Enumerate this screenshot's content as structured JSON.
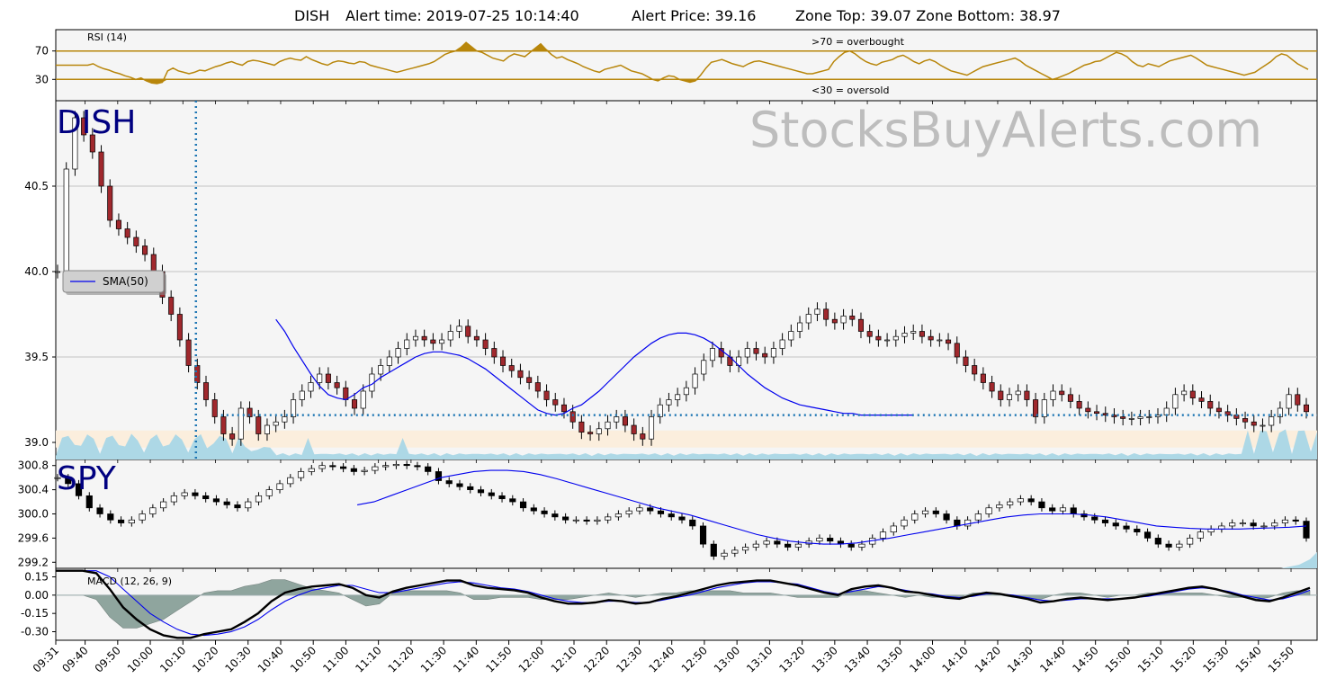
{
  "header": {
    "ticker": "DISH",
    "alert_time_label": "Alert time: 2019-07-25 10:14:40",
    "alert_price_label": "Alert Price: 39.16",
    "zone_label": "Zone Top: 39.07  Zone Bottom: 38.97"
  },
  "watermark": "StocksBuyAlerts.com",
  "colors": {
    "rsi_line": "#b8860b",
    "sma": "#0000ee",
    "volume": "#add8e6",
    "zone_fill": "#fbeedd",
    "alert_line": "#1f77b4",
    "ticker_label": "#000080",
    "macd_hist": "#6e8b82",
    "panel_bg": "#f5f5f5",
    "grid": "#b0b0b0"
  },
  "chart_data": [
    {
      "panel": "rsi",
      "type": "line",
      "title": "RSI (14)",
      "ylim": [
        0,
        100
      ],
      "yticks": [
        30,
        70
      ],
      "annotations": [
        ">70 = overbought",
        "<30 = oversold"
      ],
      "x_start": "09:31",
      "x_end": "15:58",
      "values": [
        50,
        50,
        50,
        50,
        50,
        50,
        50,
        52,
        48,
        45,
        43,
        40,
        38,
        35,
        33,
        30,
        32,
        28,
        25,
        24,
        26,
        42,
        46,
        42,
        40,
        38,
        40,
        43,
        42,
        45,
        48,
        50,
        53,
        55,
        52,
        50,
        55,
        57,
        56,
        54,
        52,
        50,
        55,
        58,
        60,
        58,
        57,
        62,
        58,
        55,
        52,
        50,
        54,
        56,
        55,
        53,
        52,
        55,
        54,
        50,
        48,
        46,
        44,
        42,
        40,
        42,
        44,
        46,
        48,
        50,
        52,
        55,
        60,
        65,
        68,
        70,
        75,
        82,
        76,
        70,
        68,
        64,
        60,
        58,
        56,
        62,
        66,
        64,
        62,
        68,
        74,
        80,
        72,
        65,
        60,
        62,
        58,
        55,
        52,
        48,
        45,
        42,
        40,
        44,
        46,
        48,
        50,
        46,
        42,
        40,
        38,
        34,
        30,
        28,
        32,
        35,
        34,
        30,
        28,
        26,
        28,
        36,
        46,
        54,
        56,
        58,
        55,
        52,
        50,
        48,
        52,
        55,
        56,
        54,
        52,
        50,
        48,
        46,
        44,
        42,
        40,
        38,
        38,
        40,
        42,
        44,
        55,
        62,
        68,
        70,
        66,
        60,
        55,
        52,
        50,
        54,
        56,
        58,
        62,
        64,
        60,
        55,
        52,
        56,
        58,
        55,
        50,
        46,
        42,
        40,
        38,
        36,
        40,
        44,
        48,
        50,
        52,
        54,
        56,
        58,
        60,
        56,
        50,
        46,
        42,
        38,
        34,
        30,
        32,
        35,
        38,
        42,
        46,
        50,
        52,
        55,
        56,
        60,
        64,
        68,
        66,
        62,
        55,
        50,
        48,
        52,
        50,
        48,
        52,
        56,
        58,
        60,
        62,
        64,
        60,
        55,
        50,
        48,
        46,
        44,
        42,
        40,
        38,
        36,
        38,
        40,
        45,
        50,
        55,
        62,
        66,
        64,
        58,
        52,
        48,
        44
      ],
      "overbought": 70,
      "oversold": 30
    },
    {
      "panel": "price",
      "type": "candlestick",
      "ticker": "DISH",
      "ylim": [
        38.9,
        41.0
      ],
      "yticks": [
        39.0,
        39.5,
        40.0,
        40.5
      ],
      "legend": [
        "SMA(50)"
      ],
      "alert_time": "10:14",
      "alert_price": 39.16,
      "zone_top": 39.07,
      "zone_bottom": 38.97,
      "close": [
        40.0,
        40.6,
        40.9,
        40.8,
        40.7,
        40.5,
        40.3,
        40.25,
        40.2,
        40.15,
        40.1,
        40.0,
        39.85,
        39.75,
        39.6,
        39.45,
        39.35,
        39.25,
        39.15,
        39.05,
        39.02,
        39.2,
        39.15,
        39.05,
        39.1,
        39.12,
        39.15,
        39.25,
        39.3,
        39.35,
        39.4,
        39.35,
        39.32,
        39.25,
        39.2,
        39.3,
        39.4,
        39.45,
        39.5,
        39.55,
        39.6,
        39.62,
        39.6,
        39.58,
        39.6,
        39.65,
        39.68,
        39.62,
        39.6,
        39.55,
        39.5,
        39.45,
        39.42,
        39.38,
        39.35,
        39.3,
        39.25,
        39.22,
        39.18,
        39.12,
        39.06,
        39.05,
        39.08,
        39.12,
        39.15,
        39.1,
        39.05,
        39.02,
        39.15,
        39.22,
        39.25,
        39.28,
        39.32,
        39.4,
        39.48,
        39.55,
        39.5,
        39.45,
        39.5,
        39.55,
        39.52,
        39.5,
        39.55,
        39.6,
        39.65,
        39.7,
        39.75,
        39.78,
        39.72,
        39.7,
        39.74,
        39.72,
        39.65,
        39.62,
        39.6,
        39.6,
        39.62,
        39.64,
        39.65,
        39.62,
        39.6,
        39.6,
        39.58,
        39.5,
        39.45,
        39.4,
        39.35,
        39.3,
        39.25,
        39.28,
        39.3,
        39.25,
        39.15,
        39.25,
        39.3,
        39.28,
        39.24,
        39.2,
        39.18,
        39.17,
        39.16,
        39.15,
        39.14,
        39.14,
        39.15,
        39.15,
        39.16,
        39.2,
        39.28,
        39.3,
        39.26,
        39.24,
        39.2,
        39.18,
        39.16,
        39.14,
        39.12,
        39.1,
        39.1,
        39.15,
        39.2,
        39.28,
        39.22,
        39.18
      ],
      "sma50": [
        null,
        null,
        null,
        null,
        null,
        null,
        null,
        null,
        null,
        null,
        null,
        null,
        null,
        null,
        null,
        null,
        null,
        null,
        null,
        null,
        null,
        null,
        null,
        null,
        null,
        39.72,
        39.65,
        39.56,
        39.48,
        39.4,
        39.33,
        39.28,
        39.26,
        39.25,
        39.28,
        39.32,
        39.34,
        39.38,
        39.41,
        39.44,
        39.47,
        39.5,
        39.52,
        39.53,
        39.53,
        39.52,
        39.51,
        39.49,
        39.46,
        39.43,
        39.39,
        39.35,
        39.31,
        39.27,
        39.23,
        39.19,
        39.17,
        39.16,
        39.17,
        39.2,
        39.22,
        39.26,
        39.3,
        39.35,
        39.4,
        39.45,
        39.5,
        39.54,
        39.58,
        39.61,
        39.63,
        39.64,
        39.64,
        39.63,
        39.61,
        39.58,
        39.54,
        39.5,
        39.45,
        39.4,
        39.36,
        39.32,
        39.29,
        39.26,
        39.24,
        39.22,
        39.21,
        39.2,
        39.19,
        39.18,
        39.17,
        39.17,
        39.16,
        39.16,
        39.16,
        39.16,
        39.16,
        39.16,
        39.16
      ]
    },
    {
      "panel": "spy",
      "type": "candlestick",
      "ticker": "SPY",
      "ylim": [
        299.1,
        300.9
      ],
      "yticks": [
        299.2,
        299.6,
        300.0,
        300.4,
        300.8
      ],
      "close": [
        300.6,
        300.5,
        300.3,
        300.1,
        300.0,
        299.9,
        299.85,
        299.9,
        300.0,
        300.1,
        300.2,
        300.3,
        300.35,
        300.3,
        300.25,
        300.2,
        300.15,
        300.1,
        300.2,
        300.3,
        300.4,
        300.5,
        300.6,
        300.7,
        300.75,
        300.8,
        300.78,
        300.75,
        300.7,
        300.72,
        300.78,
        300.8,
        300.82,
        300.8,
        300.78,
        300.7,
        300.55,
        300.5,
        300.45,
        300.4,
        300.35,
        300.3,
        300.25,
        300.2,
        300.1,
        300.05,
        300.0,
        299.95,
        299.9,
        299.9,
        299.88,
        299.9,
        299.95,
        300.0,
        300.05,
        300.1,
        300.05,
        300.0,
        299.95,
        299.9,
        299.8,
        299.5,
        299.3,
        299.35,
        299.4,
        299.45,
        299.5,
        299.55,
        299.5,
        299.45,
        299.5,
        299.55,
        299.6,
        299.55,
        299.5,
        299.45,
        299.5,
        299.6,
        299.7,
        299.8,
        299.9,
        300.0,
        300.05,
        300.0,
        299.9,
        299.8,
        299.9,
        300.0,
        300.1,
        300.15,
        300.2,
        300.25,
        300.2,
        300.1,
        300.05,
        300.1,
        300.0,
        299.95,
        299.9,
        299.85,
        299.8,
        299.75,
        299.7,
        299.6,
        299.5,
        299.45,
        299.5,
        299.6,
        299.7,
        299.75,
        299.8,
        299.85,
        299.85,
        299.8,
        299.8,
        299.85,
        299.9,
        299.88,
        299.6
      ],
      "sma50": [
        null,
        null,
        null,
        null,
        null,
        null,
        null,
        null,
        null,
        null,
        null,
        null,
        null,
        null,
        null,
        null,
        null,
        null,
        300.15,
        300.2,
        300.3,
        300.4,
        300.5,
        300.6,
        300.65,
        300.7,
        300.72,
        300.72,
        300.7,
        300.65,
        300.58,
        300.5,
        300.42,
        300.34,
        300.26,
        300.18,
        300.1,
        300.04,
        299.98,
        299.9,
        299.82,
        299.74,
        299.66,
        299.6,
        299.55,
        299.52,
        299.5,
        299.5,
        299.52,
        299.56,
        299.6,
        299.65,
        299.7,
        299.75,
        299.8,
        299.85,
        299.9,
        299.95,
        299.98,
        300.0,
        300.0,
        300.0,
        299.98,
        299.95,
        299.9,
        299.85,
        299.8,
        299.78,
        299.76,
        299.75,
        299.75,
        299.75,
        299.76,
        299.77,
        299.78,
        299.8
      ]
    },
    {
      "panel": "macd",
      "type": "line",
      "title": "MACD (12, 26, 9)",
      "ylim": [
        -0.37,
        0.22
      ],
      "yticks": [
        0.15,
        0.0,
        -0.15,
        -0.3
      ],
      "macd": [
        0.2,
        0.2,
        0.2,
        0.18,
        0.05,
        -0.1,
        -0.2,
        -0.28,
        -0.33,
        -0.35,
        -0.35,
        -0.32,
        -0.3,
        -0.28,
        -0.22,
        -0.15,
        -0.05,
        0.02,
        0.05,
        0.07,
        0.08,
        0.09,
        0.06,
        0.0,
        -0.02,
        0.03,
        0.06,
        0.08,
        0.1,
        0.12,
        0.12,
        0.08,
        0.06,
        0.05,
        0.04,
        0.02,
        -0.02,
        -0.05,
        -0.07,
        -0.07,
        -0.06,
        -0.04,
        -0.05,
        -0.07,
        -0.06,
        -0.03,
        -0.01,
        0.02,
        0.05,
        0.08,
        0.1,
        0.11,
        0.12,
        0.12,
        0.1,
        0.08,
        0.05,
        0.02,
        0.0,
        0.05,
        0.07,
        0.08,
        0.06,
        0.03,
        0.02,
        0.0,
        -0.02,
        -0.03,
        0.0,
        0.02,
        0.01,
        -0.01,
        -0.03,
        -0.06,
        -0.05,
        -0.03,
        -0.02,
        -0.03,
        -0.04,
        -0.03,
        -0.02,
        0.0,
        0.02,
        0.04,
        0.06,
        0.07,
        0.05,
        0.02,
        -0.01,
        -0.04,
        -0.05,
        -0.02,
        0.02,
        0.06
      ],
      "signal": [
        0.2,
        0.2,
        0.2,
        0.2,
        0.15,
        0.05,
        -0.05,
        -0.15,
        -0.22,
        -0.28,
        -0.32,
        -0.33,
        -0.32,
        -0.3,
        -0.26,
        -0.2,
        -0.12,
        -0.05,
        0.0,
        0.04,
        0.06,
        0.08,
        0.08,
        0.05,
        0.02,
        0.02,
        0.04,
        0.06,
        0.08,
        0.1,
        0.11,
        0.1,
        0.08,
        0.06,
        0.05,
        0.03,
        0.0,
        -0.03,
        -0.05,
        -0.06,
        -0.06,
        -0.05,
        -0.05,
        -0.06,
        -0.06,
        -0.04,
        -0.02,
        0.0,
        0.03,
        0.06,
        0.08,
        0.1,
        0.11,
        0.11,
        0.1,
        0.09,
        0.06,
        0.03,
        0.01,
        0.03,
        0.05,
        0.07,
        0.06,
        0.04,
        0.02,
        0.01,
        -0.01,
        -0.02,
        -0.01,
        0.01,
        0.01,
        0.0,
        -0.02,
        -0.04,
        -0.05,
        -0.04,
        -0.03,
        -0.03,
        -0.03,
        -0.03,
        -0.02,
        -0.01,
        0.01,
        0.03,
        0.05,
        0.06,
        0.05,
        0.03,
        0.0,
        -0.02,
        -0.04,
        -0.03,
        0.0,
        0.04
      ]
    }
  ],
  "x_axis": {
    "labels": [
      "09:31",
      "09:40",
      "09:50",
      "10:00",
      "10:10",
      "10:20",
      "10:30",
      "10:40",
      "10:50",
      "11:00",
      "11:10",
      "11:20",
      "11:30",
      "11:40",
      "11:50",
      "12:00",
      "12:10",
      "12:20",
      "12:30",
      "12:40",
      "12:50",
      "13:00",
      "13:10",
      "13:20",
      "13:30",
      "13:40",
      "13:50",
      "14:00",
      "14:10",
      "14:20",
      "14:30",
      "14:40",
      "14:50",
      "15:00",
      "15:10",
      "15:20",
      "15:30",
      "15:40",
      "15:50"
    ]
  }
}
